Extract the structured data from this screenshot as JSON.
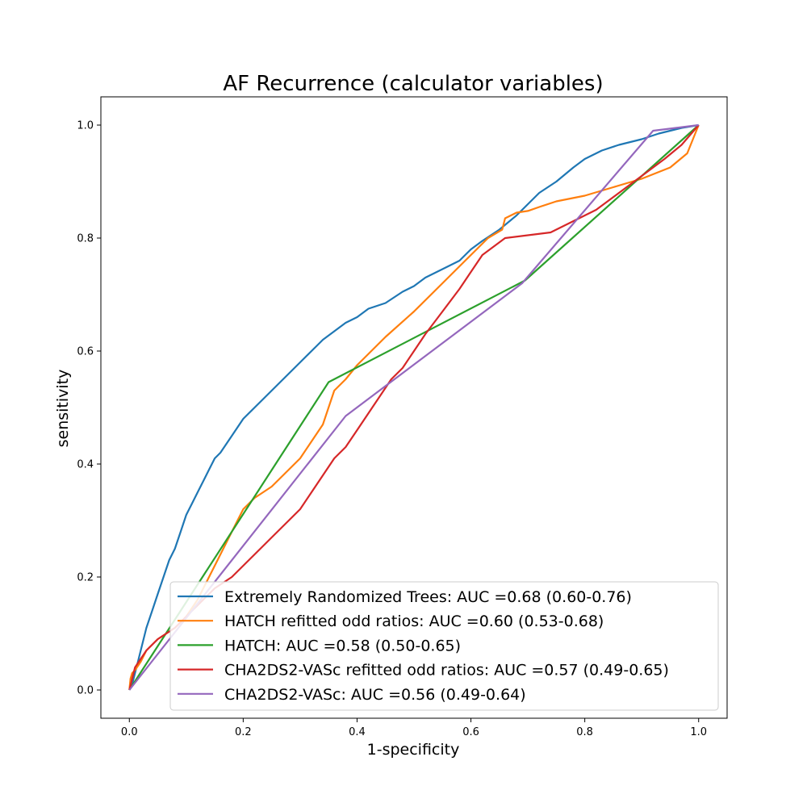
{
  "chart_data": {
    "type": "line",
    "title": "AF Recurrence (calculator variables)",
    "xlabel": "1-specificity",
    "ylabel": "sensitivity",
    "xlim": [
      -0.05,
      1.05
    ],
    "ylim": [
      -0.05,
      1.05
    ],
    "xticks": [
      "0.0",
      "0.2",
      "0.4",
      "0.6",
      "0.8",
      "1.0"
    ],
    "yticks": [
      "0.0",
      "0.2",
      "0.4",
      "0.6",
      "0.8",
      "1.0"
    ],
    "grid": false,
    "legend_position": "lower-right",
    "series": [
      {
        "name": "Extremely Randomized Trees: AUC =0.68 (0.60-0.76)",
        "color": "#1f77b4",
        "x": [
          0,
          0.005,
          0.01,
          0.015,
          0.02,
          0.025,
          0.03,
          0.04,
          0.05,
          0.06,
          0.07,
          0.08,
          0.09,
          0.1,
          0.11,
          0.12,
          0.13,
          0.14,
          0.15,
          0.16,
          0.18,
          0.2,
          0.22,
          0.24,
          0.26,
          0.28,
          0.3,
          0.32,
          0.34,
          0.36,
          0.38,
          0.4,
          0.42,
          0.45,
          0.48,
          0.5,
          0.52,
          0.55,
          0.58,
          0.6,
          0.62,
          0.65,
          0.68,
          0.7,
          0.72,
          0.75,
          0.78,
          0.8,
          0.83,
          0.86,
          0.9,
          0.93,
          0.95,
          0.97,
          1.0
        ],
        "y": [
          0,
          0.01,
          0.03,
          0.05,
          0.07,
          0.09,
          0.11,
          0.14,
          0.17,
          0.2,
          0.23,
          0.25,
          0.28,
          0.31,
          0.33,
          0.35,
          0.37,
          0.39,
          0.41,
          0.42,
          0.45,
          0.48,
          0.5,
          0.52,
          0.54,
          0.56,
          0.58,
          0.6,
          0.62,
          0.635,
          0.65,
          0.66,
          0.675,
          0.685,
          0.705,
          0.715,
          0.73,
          0.745,
          0.76,
          0.78,
          0.795,
          0.815,
          0.84,
          0.86,
          0.88,
          0.9,
          0.925,
          0.94,
          0.955,
          0.965,
          0.975,
          0.985,
          0.99,
          0.995,
          1.0
        ]
      },
      {
        "name": "HATCH refitted odd ratios: AUC =0.60 (0.53-0.68)",
        "color": "#ff7f0e",
        "x": [
          0,
          0.002,
          0.005,
          0.01,
          0.02,
          0.03,
          0.05,
          0.08,
          0.1,
          0.12,
          0.15,
          0.17,
          0.19,
          0.2,
          0.22,
          0.25,
          0.28,
          0.3,
          0.32,
          0.34,
          0.36,
          0.38,
          0.4,
          0.45,
          0.5,
          0.55,
          0.6,
          0.63,
          0.655,
          0.66,
          0.68,
          0.7,
          0.72,
          0.75,
          0.8,
          0.85,
          0.9,
          0.95,
          0.98,
          1.0
        ],
        "y": [
          0,
          0.02,
          0.03,
          0.035,
          0.05,
          0.07,
          0.09,
          0.11,
          0.13,
          0.16,
          0.22,
          0.26,
          0.3,
          0.32,
          0.34,
          0.36,
          0.39,
          0.41,
          0.44,
          0.47,
          0.53,
          0.55,
          0.575,
          0.625,
          0.67,
          0.72,
          0.77,
          0.8,
          0.815,
          0.835,
          0.845,
          0.848,
          0.855,
          0.865,
          0.875,
          0.89,
          0.905,
          0.925,
          0.95,
          1.0
        ]
      },
      {
        "name": "HATCH: AUC =0.58 (0.50-0.65)",
        "color": "#2ca02c",
        "x": [
          0,
          0.35,
          0.695,
          1.0
        ],
        "y": [
          0,
          0.545,
          0.725,
          1.0
        ]
      },
      {
        "name": "CHA2DS2-VASc refitted odd ratios: AUC =0.57 (0.49-0.65)",
        "color": "#d62728",
        "x": [
          0,
          0.01,
          0.03,
          0.05,
          0.08,
          0.1,
          0.12,
          0.15,
          0.18,
          0.2,
          0.22,
          0.25,
          0.28,
          0.3,
          0.32,
          0.34,
          0.36,
          0.38,
          0.4,
          0.42,
          0.44,
          0.46,
          0.48,
          0.5,
          0.52,
          0.55,
          0.58,
          0.6,
          0.62,
          0.66,
          0.74,
          0.78,
          0.82,
          0.86,
          0.9,
          0.94,
          0.97,
          1.0
        ],
        "y": [
          0,
          0.04,
          0.07,
          0.09,
          0.11,
          0.13,
          0.15,
          0.18,
          0.2,
          0.22,
          0.24,
          0.27,
          0.3,
          0.32,
          0.35,
          0.38,
          0.41,
          0.43,
          0.46,
          0.49,
          0.52,
          0.55,
          0.57,
          0.6,
          0.63,
          0.67,
          0.71,
          0.74,
          0.77,
          0.8,
          0.81,
          0.83,
          0.85,
          0.88,
          0.91,
          0.94,
          0.965,
          1.0
        ]
      },
      {
        "name": "CHA2DS2-VASc: AUC =0.56 (0.49-0.64)",
        "color": "#9467bd",
        "x": [
          0,
          0.38,
          0.69,
          0.92,
          1.0
        ],
        "y": [
          0,
          0.485,
          0.72,
          0.99,
          1.0
        ]
      }
    ]
  }
}
